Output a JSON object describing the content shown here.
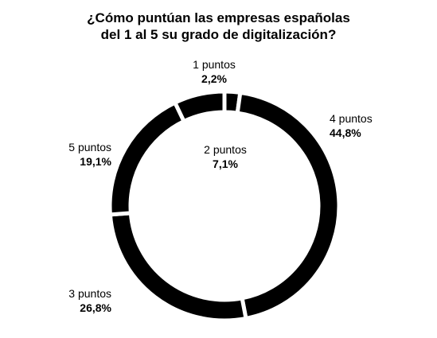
{
  "chart_data": {
    "type": "pie",
    "style": "donut",
    "title_lines": [
      "¿Cómo puntúan las empresas españolas",
      "del 1 al 5 su grado de digitalización?"
    ],
    "slices": [
      {
        "label": "1 puntos",
        "value": 2.2,
        "display": "2,2%"
      },
      {
        "label": "4 puntos",
        "value": 44.8,
        "display": "44,8%"
      },
      {
        "label": "3 puntos",
        "value": 26.8,
        "display": "26,8%"
      },
      {
        "label": "5 puntos",
        "value": 19.1,
        "display": "19,1%"
      },
      {
        "label": "2 puntos",
        "value": 7.1,
        "display": "7,1%"
      }
    ],
    "colors": {
      "slice": "#000000",
      "separator": "#ffffff",
      "background": "#ffffff"
    }
  }
}
